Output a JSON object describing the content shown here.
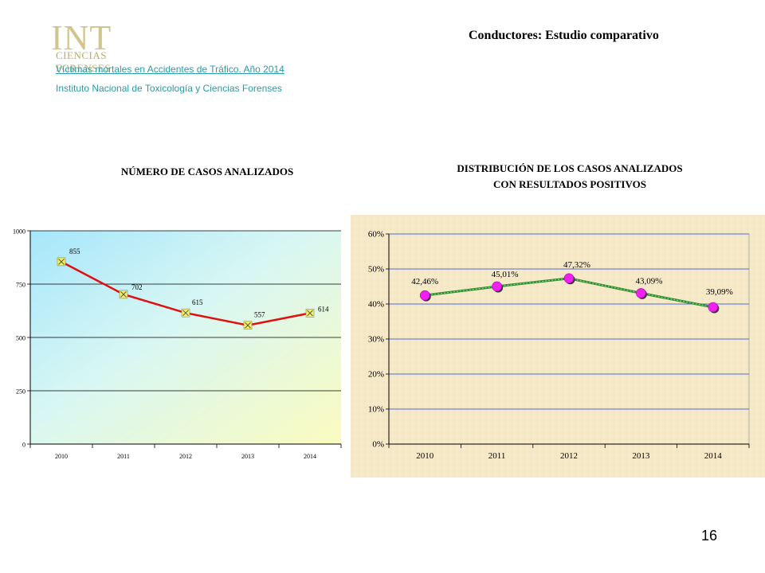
{
  "header": {
    "logo_text": "INT",
    "logo_subtext": "CIENCIAS FORENSES",
    "link_text": "Víctimas mortales en Accidentes de Tráfico. Año 2014",
    "institute": "Instituto Nacional de Toxicología y Ciencias Forenses",
    "title": "Conductores: Estudio comparativo"
  },
  "chart_titles": {
    "left": "NÚMERO DE CASOS ANALIZADOS",
    "right_line1": "DISTRIBUCIÓN DE LOS CASOS ANALIZADOS",
    "right_line2": "CON RESULTADOS POSITIVOS"
  },
  "page_number": "16",
  "chart_data": [
    {
      "type": "line",
      "categories": [
        "2010",
        "2011",
        "2012",
        "2013",
        "2014"
      ],
      "values": [
        855,
        702,
        615,
        557,
        614
      ],
      "data_labels": [
        "855",
        "702",
        "615",
        "557",
        "614"
      ],
      "ylim": [
        0,
        1000
      ],
      "yticks": [
        0,
        250,
        500,
        750,
        1000
      ],
      "ytick_labels": [
        "0",
        "250",
        "500",
        "750",
        "1000"
      ],
      "grid": true,
      "line_color": "#e01010",
      "marker_color": "#f2f25a"
    },
    {
      "type": "line",
      "categories": [
        "2010",
        "2011",
        "2012",
        "2013",
        "2014"
      ],
      "values": [
        42.46,
        45.01,
        47.32,
        43.09,
        39.09
      ],
      "data_labels": [
        "42,46%",
        "45,01%",
        "47,32%",
        "43,09%",
        "39,09%"
      ],
      "ylim": [
        0,
        60
      ],
      "yticks": [
        0,
        10,
        20,
        30,
        40,
        50,
        60
      ],
      "ytick_labels": [
        "0%",
        "10%",
        "20%",
        "30%",
        "40%",
        "50%",
        "60%"
      ],
      "grid": true,
      "line_color": "#2e8b2e",
      "marker_color": "#ee22ee"
    }
  ]
}
